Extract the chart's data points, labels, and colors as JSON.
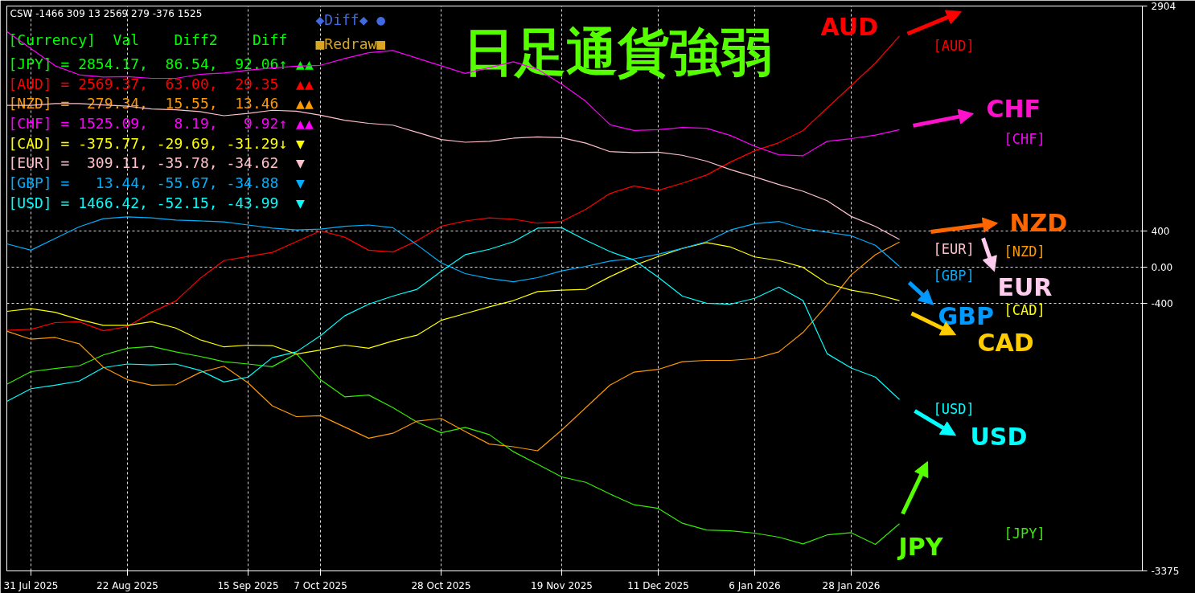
{
  "chart_data": {
    "type": "line",
    "title": "日足通貨強弱",
    "annotations": [
      "CSW -1466 309 13 2569 279 -376 1525",
      "[Currency]  Val    Diff2    Diff",
      "[JPY] = 2854.17,  86.54,  92.06↑ ▲▲",
      "[AUD] = 2569.37,  63.00,  29.35  ▲▲",
      "[NZD] =  279.34,  15.55,  13.46  ▲▲",
      "[CHF] = 1525.09,   8.19,   9.92↑ ▲▲",
      "[CAD] = -375.77, -29.69, -31.29↓ ▼",
      "[EUR] =  309.11, -35.78, -34.62  ▼",
      "[GBP] =   13.44, -55.67, -34.88  ▼",
      "[USD] = 1466.42, -52.15, -43.99  ▼",
      "◆Diff◆ ●",
      "■Redraw■",
      "AUD",
      "CHF",
      "NZD",
      "EUR",
      "GBP",
      "CAD",
      "USD",
      "JPY"
    ],
    "categories": [
      null,
      "31 Jul 2025",
      null,
      null,
      null,
      "22 Aug 2025",
      null,
      null,
      null,
      null,
      "15 Sep 2025",
      null,
      null,
      "7 Oct 2025",
      null,
      null,
      null,
      null,
      "28 Oct 2025",
      null,
      null,
      null,
      null,
      "19 Nov 2025",
      null,
      null,
      null,
      "11 Dec 2025",
      null,
      null,
      null,
      "6 Jan 2026",
      null,
      null,
      null,
      "28 Jan 2026",
      null,
      null
    ],
    "ylim": [
      -3375,
      2904
    ],
    "yticks": [
      2904,
      400,
      {
        "value": 0,
        "label": "0.00"
      },
      -400,
      -3375
    ],
    "grid": true,
    "series": [
      {
        "name": "[JPY]",
        "color": "#33ee00",
        "values": [
          -1300,
          -1160,
          -1125,
          -1095,
          -975,
          -900,
          -880,
          -940,
          -990,
          -1050,
          -1075,
          -1105,
          -960,
          -1250,
          -1440,
          -1420,
          -1560,
          -1720,
          -1840,
          -1780,
          -1860,
          -2050,
          -2190,
          -2330,
          -2390,
          -2520,
          -2640,
          -2680,
          -2845,
          -2920,
          -2930,
          -2955,
          -3000,
          -3075,
          -2975,
          -2950,
          -3080,
          -2850
        ]
      },
      {
        "name": "[AUD]",
        "color": "#ff0000",
        "values": [
          -700,
          -690,
          -615,
          -605,
          -705,
          -660,
          -500,
          -375,
          -125,
          75,
          120,
          165,
          285,
          405,
          335,
          190,
          170,
          295,
          455,
          515,
          550,
          535,
          490,
          510,
          645,
          820,
          905,
          855,
          935,
          1025,
          1170,
          1295,
          1385,
          1520,
          1770,
          2020,
          2270,
          2570
        ]
      },
      {
        "name": "[NZD]",
        "color": "#ff9900",
        "values": [
          -710,
          -800,
          -780,
          -850,
          -1110,
          -1250,
          -1310,
          -1305,
          -1170,
          -1100,
          -1285,
          -1540,
          -1660,
          -1650,
          -1775,
          -1900,
          -1845,
          -1710,
          -1680,
          -1825,
          -1965,
          -1995,
          -2040,
          -1810,
          -1560,
          -1310,
          -1165,
          -1135,
          -1050,
          -1035,
          -1035,
          -1015,
          -940,
          -725,
          -420,
          -85,
          140,
          280
        ]
      },
      {
        "name": "[CHF]",
        "color": "#ff00ff",
        "values": [
          2620,
          2430,
          2240,
          2140,
          2115,
          2120,
          2100,
          2100,
          2145,
          2160,
          2190,
          2215,
          2235,
          2245,
          2320,
          2385,
          2410,
          2325,
          2240,
          2155,
          2220,
          2285,
          2200,
          2035,
          1845,
          1585,
          1520,
          1530,
          1555,
          1545,
          1465,
          1345,
          1250,
          1240,
          1400,
          1430,
          1470,
          1530
        ]
      },
      {
        "name": "[CAD]",
        "color": "#ffff00",
        "values": [
          -490,
          -460,
          -500,
          -580,
          -645,
          -645,
          -605,
          -675,
          -805,
          -885,
          -865,
          -870,
          -965,
          -920,
          -865,
          -900,
          -820,
          -755,
          -590,
          -515,
          -440,
          -370,
          -270,
          -255,
          -245,
          -105,
          20,
          120,
          210,
          275,
          225,
          115,
          75,
          0,
          -180,
          -255,
          -300,
          -370
        ]
      },
      {
        "name": "[EUR]",
        "color": "#ffc0cb",
        "values": [
          1800,
          1800,
          1820,
          1820,
          1805,
          1790,
          1760,
          1750,
          1730,
          1685,
          1710,
          1745,
          1735,
          1690,
          1635,
          1600,
          1580,
          1500,
          1420,
          1390,
          1400,
          1435,
          1450,
          1440,
          1380,
          1285,
          1275,
          1280,
          1245,
          1180,
          1085,
          1005,
          920,
          845,
          740,
          565,
          455,
          310
        ]
      },
      {
        "name": "[GBP]",
        "color": "#00b0ff",
        "values": [
          260,
          190,
          320,
          450,
          540,
          560,
          550,
          525,
          515,
          505,
          470,
          435,
          415,
          425,
          455,
          470,
          440,
          250,
          50,
          -70,
          -125,
          -160,
          -115,
          -40,
          10,
          70,
          95,
          145,
          210,
          285,
          415,
          485,
          510,
          430,
          390,
          350,
          245,
          10
        ]
      },
      {
        "name": "[USD]",
        "color": "#00ffff",
        "values": [
          -1490,
          -1350,
          -1310,
          -1265,
          -1115,
          -1075,
          -1085,
          -1075,
          -1145,
          -1275,
          -1220,
          -1005,
          -940,
          -760,
          -540,
          -410,
          -320,
          -245,
          -45,
          140,
          200,
          285,
          435,
          440,
          300,
          175,
          80,
          -110,
          -320,
          -400,
          -410,
          -345,
          -220,
          -370,
          -960,
          -1120,
          -1220,
          -1470
        ]
      }
    ]
  }
}
